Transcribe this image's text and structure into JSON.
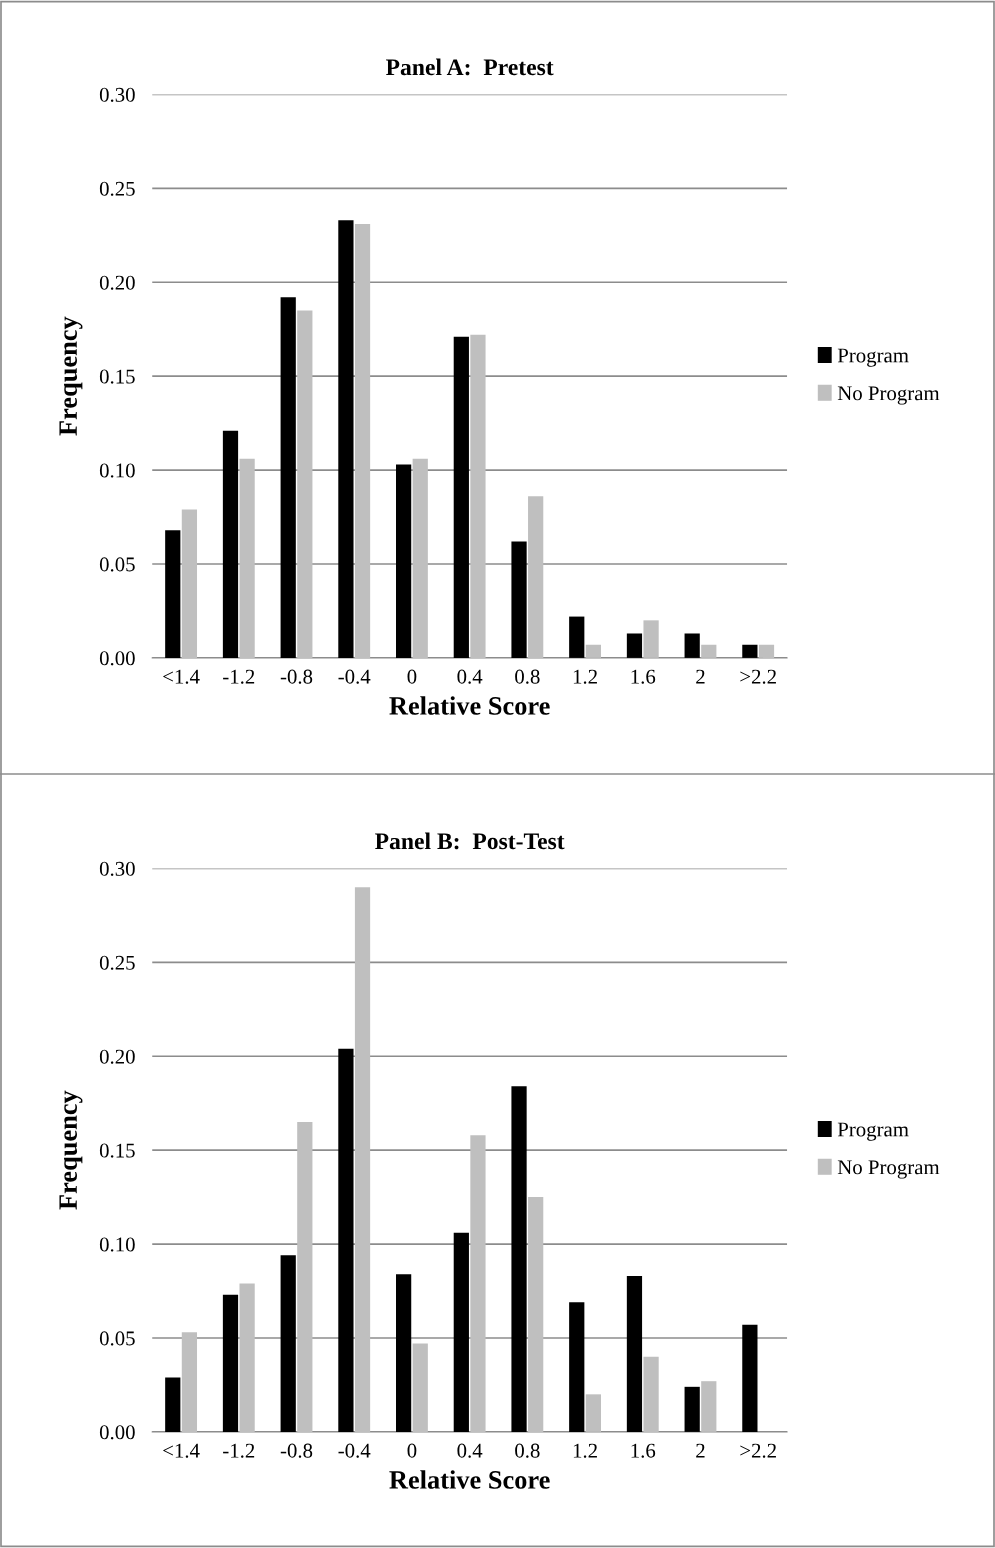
{
  "chart_data": [
    {
      "type": "bar",
      "title": "Panel A:  Pretest",
      "xlabel": "Relative Score",
      "ylabel": "Frequency",
      "categories": [
        "<1.4",
        "-1.2",
        "-0.8",
        "-0.4",
        "0",
        "0.4",
        "0.8",
        "1.2",
        "1.6",
        "2",
        ">2.2"
      ],
      "series": [
        {
          "name": "Program",
          "color": "#000000",
          "values": [
            0.068,
            0.121,
            0.192,
            0.233,
            0.103,
            0.171,
            0.062,
            0.022,
            0.013,
            0.013,
            0.007
          ]
        },
        {
          "name": "No Program",
          "color": "#bfbfbf",
          "values": [
            0.079,
            0.106,
            0.185,
            0.231,
            0.106,
            0.172,
            0.086,
            0.007,
            0.02,
            0.007,
            0.007
          ]
        }
      ],
      "ylim": [
        0,
        0.3
      ],
      "yticks": [
        {
          "value": 0,
          "label": "0.00"
        },
        {
          "value": 0.05,
          "label": "0.05"
        },
        {
          "value": 0.1,
          "label": "0.10"
        },
        {
          "value": 0.15,
          "label": "0.15"
        },
        {
          "value": 0.2,
          "label": "0.20"
        },
        {
          "value": 0.25,
          "label": "0.25"
        },
        {
          "value": 0.3,
          "label": "0.30"
        }
      ],
      "grid": "y",
      "legend": "right"
    },
    {
      "type": "bar",
      "title": "Panel B:  Post-Test",
      "xlabel": "Relative Score",
      "ylabel": "Frequency",
      "categories": [
        "<1.4",
        "-1.2",
        "-0.8",
        "-0.4",
        "0",
        "0.4",
        "0.8",
        "1.2",
        "1.6",
        "2",
        ">2.2"
      ],
      "series": [
        {
          "name": "Program",
          "color": "#000000",
          "values": [
            0.029,
            0.073,
            0.094,
            0.204,
            0.084,
            0.106,
            0.184,
            0.069,
            0.083,
            0.024,
            0.057
          ]
        },
        {
          "name": "No Program",
          "color": "#bfbfbf",
          "values": [
            0.053,
            0.079,
            0.165,
            0.29,
            0.047,
            0.158,
            0.125,
            0.02,
            0.04,
            0.027,
            0
          ]
        }
      ],
      "ylim": [
        0,
        0.3
      ],
      "yticks": [
        {
          "value": 0,
          "label": "0.00"
        },
        {
          "value": 0.05,
          "label": "0.05"
        },
        {
          "value": 0.1,
          "label": "0.10"
        },
        {
          "value": 0.15,
          "label": "0.15"
        },
        {
          "value": 0.2,
          "label": "0.20"
        },
        {
          "value": 0.25,
          "label": "0.25"
        },
        {
          "value": 0.3,
          "label": "0.30"
        }
      ],
      "grid": "y",
      "legend": "right"
    }
  ]
}
